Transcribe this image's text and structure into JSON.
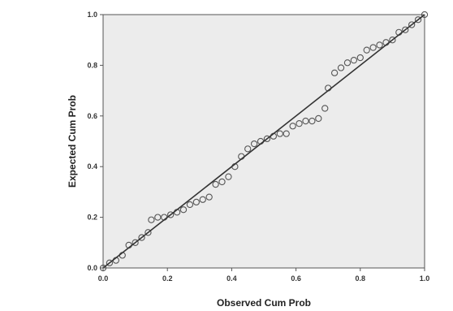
{
  "chart_data": {
    "type": "scatter",
    "xlabel": "Observed Cum Prob",
    "ylabel": "Expected Cum Prob",
    "xlim": [
      0,
      1
    ],
    "ylim": [
      0,
      1
    ],
    "x_ticks": [
      "0.0",
      "0.2",
      "0.4",
      "0.6",
      "0.8",
      "1.0"
    ],
    "y_ticks": [
      "0.0",
      "0.2",
      "0.4",
      "0.6",
      "0.8",
      "1.0"
    ],
    "grid": false,
    "reference_line": {
      "x": [
        0,
        1
      ],
      "y": [
        0,
        1
      ]
    },
    "colors": {
      "plot_background": "#ececec",
      "marker": "#555555",
      "line": "#333333"
    },
    "points": [
      {
        "x": 0.0,
        "y": 0.0
      },
      {
        "x": 0.02,
        "y": 0.02
      },
      {
        "x": 0.04,
        "y": 0.03
      },
      {
        "x": 0.06,
        "y": 0.05
      },
      {
        "x": 0.08,
        "y": 0.09
      },
      {
        "x": 0.1,
        "y": 0.1
      },
      {
        "x": 0.12,
        "y": 0.12
      },
      {
        "x": 0.14,
        "y": 0.14
      },
      {
        "x": 0.15,
        "y": 0.19
      },
      {
        "x": 0.17,
        "y": 0.2
      },
      {
        "x": 0.19,
        "y": 0.2
      },
      {
        "x": 0.21,
        "y": 0.21
      },
      {
        "x": 0.23,
        "y": 0.22
      },
      {
        "x": 0.25,
        "y": 0.23
      },
      {
        "x": 0.27,
        "y": 0.25
      },
      {
        "x": 0.29,
        "y": 0.26
      },
      {
        "x": 0.31,
        "y": 0.27
      },
      {
        "x": 0.33,
        "y": 0.28
      },
      {
        "x": 0.35,
        "y": 0.33
      },
      {
        "x": 0.37,
        "y": 0.34
      },
      {
        "x": 0.39,
        "y": 0.36
      },
      {
        "x": 0.41,
        "y": 0.4
      },
      {
        "x": 0.43,
        "y": 0.44
      },
      {
        "x": 0.45,
        "y": 0.47
      },
      {
        "x": 0.47,
        "y": 0.49
      },
      {
        "x": 0.49,
        "y": 0.5
      },
      {
        "x": 0.51,
        "y": 0.51
      },
      {
        "x": 0.53,
        "y": 0.52
      },
      {
        "x": 0.55,
        "y": 0.53
      },
      {
        "x": 0.57,
        "y": 0.53
      },
      {
        "x": 0.59,
        "y": 0.56
      },
      {
        "x": 0.61,
        "y": 0.57
      },
      {
        "x": 0.63,
        "y": 0.58
      },
      {
        "x": 0.65,
        "y": 0.58
      },
      {
        "x": 0.67,
        "y": 0.59
      },
      {
        "x": 0.69,
        "y": 0.63
      },
      {
        "x": 0.7,
        "y": 0.71
      },
      {
        "x": 0.72,
        "y": 0.77
      },
      {
        "x": 0.74,
        "y": 0.79
      },
      {
        "x": 0.76,
        "y": 0.81
      },
      {
        "x": 0.78,
        "y": 0.82
      },
      {
        "x": 0.8,
        "y": 0.83
      },
      {
        "x": 0.82,
        "y": 0.86
      },
      {
        "x": 0.84,
        "y": 0.87
      },
      {
        "x": 0.86,
        "y": 0.88
      },
      {
        "x": 0.88,
        "y": 0.89
      },
      {
        "x": 0.9,
        "y": 0.9
      },
      {
        "x": 0.92,
        "y": 0.93
      },
      {
        "x": 0.94,
        "y": 0.94
      },
      {
        "x": 0.96,
        "y": 0.96
      },
      {
        "x": 0.98,
        "y": 0.98
      },
      {
        "x": 1.0,
        "y": 1.0
      }
    ]
  }
}
